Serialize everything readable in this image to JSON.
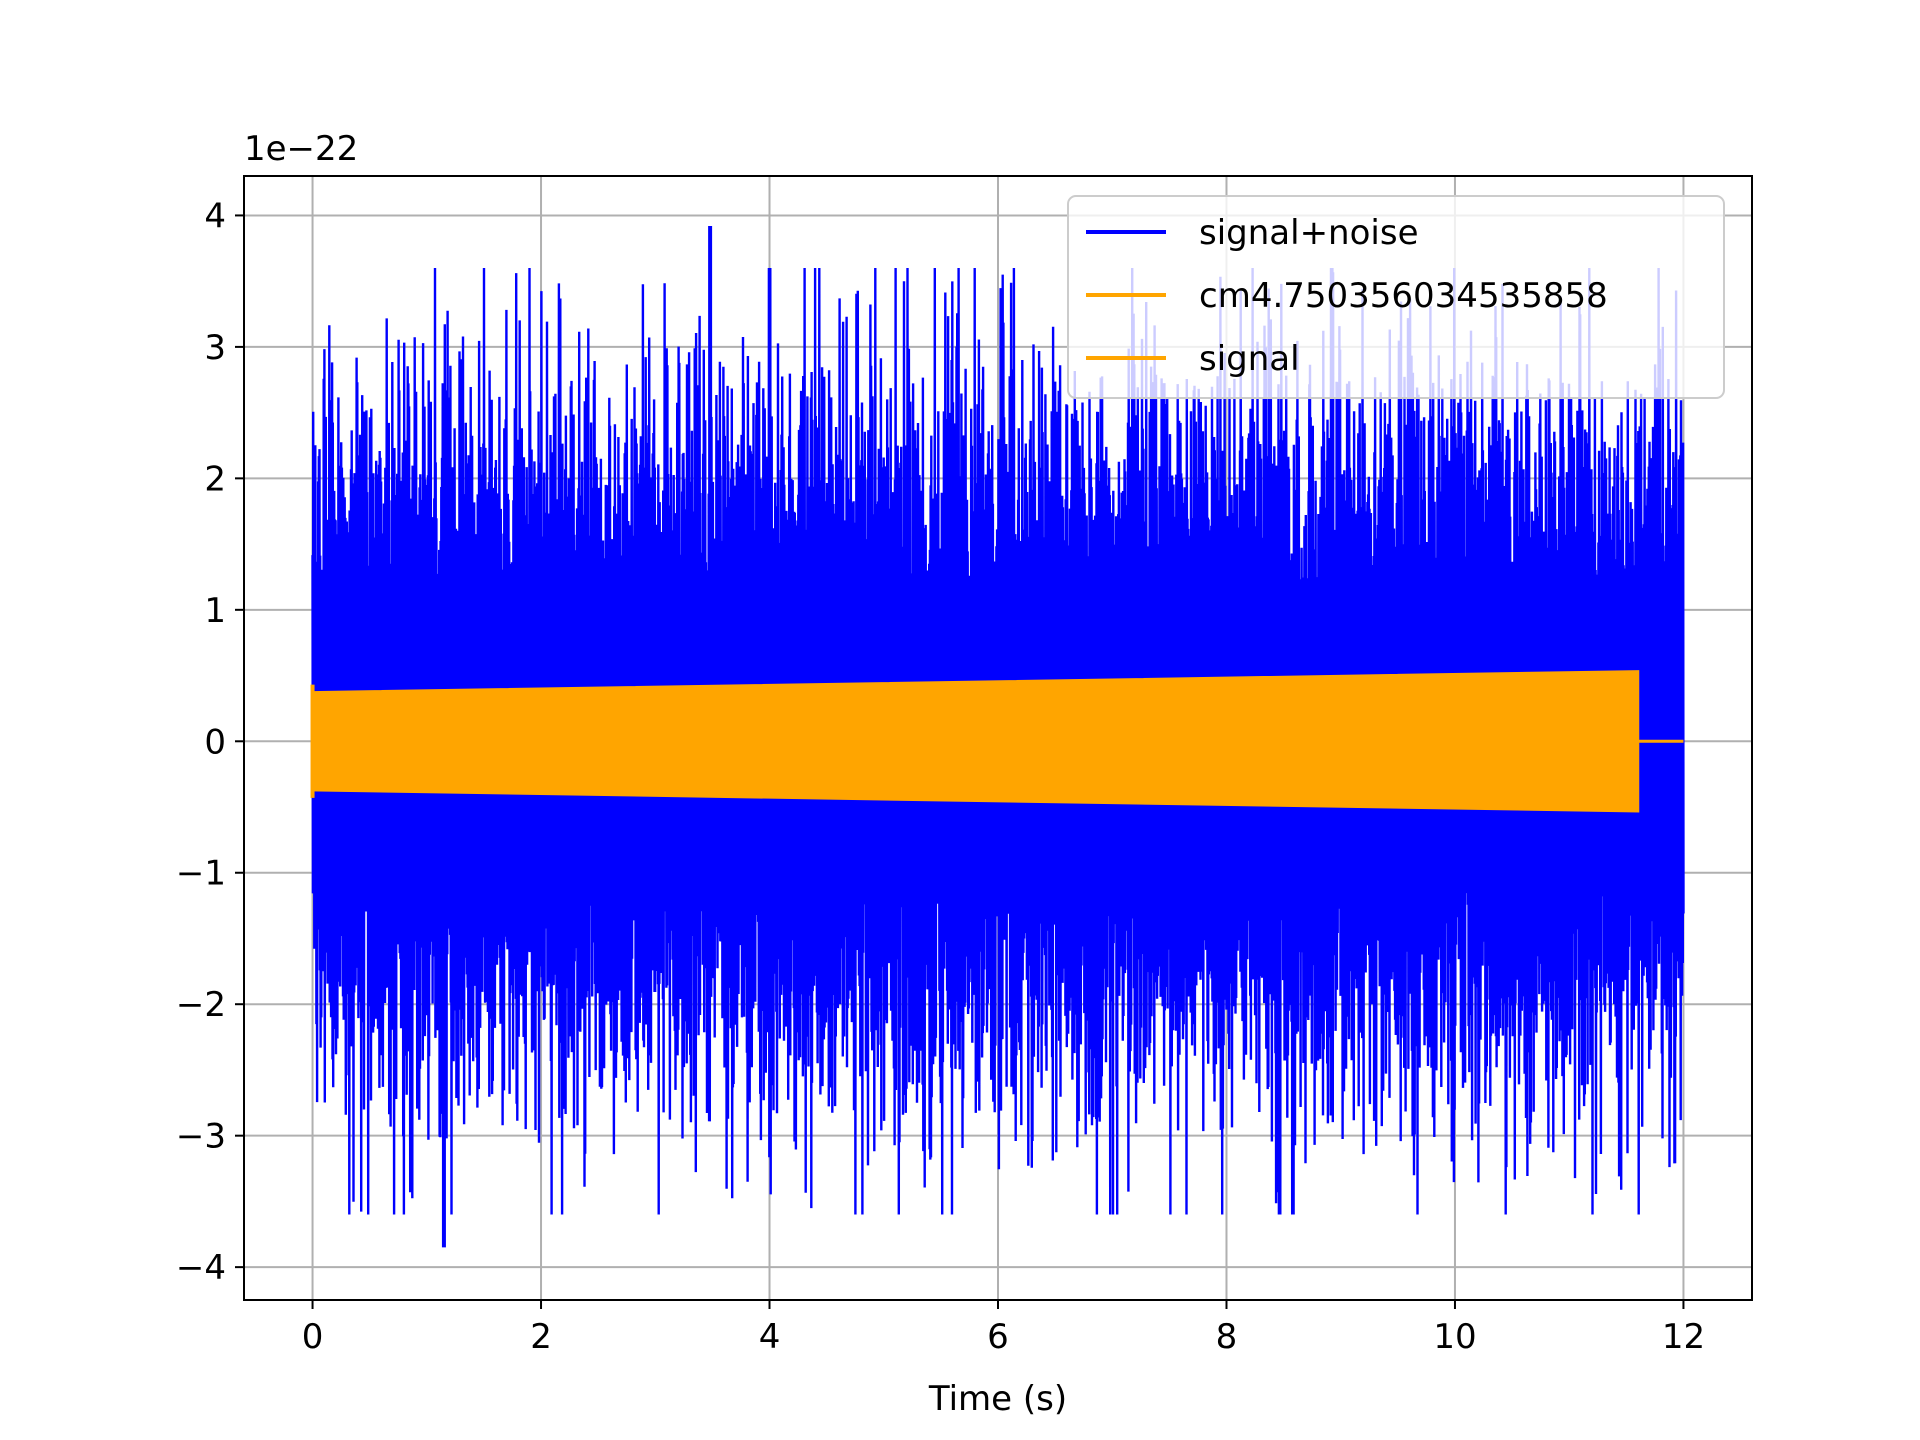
{
  "chart_data": {
    "type": "line",
    "title": "",
    "xlabel": "Time (s)",
    "ylabel": "",
    "y_scale_label": "1e−22",
    "xlim": [
      -0.6,
      12.6
    ],
    "ylim": [
      -4.25,
      4.3
    ],
    "x_ticks": [
      0,
      2,
      4,
      6,
      8,
      10,
      12
    ],
    "x_tick_labels": [
      "0",
      "2",
      "4",
      "6",
      "8",
      "10",
      "12"
    ],
    "y_ticks": [
      -4,
      -3,
      -2,
      -1,
      0,
      1,
      2,
      3,
      4
    ],
    "y_tick_labels": [
      "−4",
      "−3",
      "−2",
      "−1",
      "0",
      "1",
      "2",
      "3",
      "4"
    ],
    "grid": true,
    "legend_position": "top-right",
    "series": [
      {
        "name": "signal+noise",
        "color": "#0000ff",
        "x_range": [
          0,
          12
        ],
        "typical_amplitude": 1.6,
        "peak_max": 3.92,
        "peak_max_x": 3.48,
        "peak_min": -3.85,
        "peak_min_x": 1.15
      },
      {
        "name": "cm4.750356034535858",
        "color": "#ffa500",
        "x": [
          0,
          11.6
        ],
        "envelope": [
          0.37,
          0.53
        ],
        "note": ""
      },
      {
        "name": "signal",
        "color": "#ffa500",
        "x": [
          0,
          11.6,
          12
        ],
        "envelope": [
          0.37,
          0.53,
          0
        ]
      }
    ]
  }
}
